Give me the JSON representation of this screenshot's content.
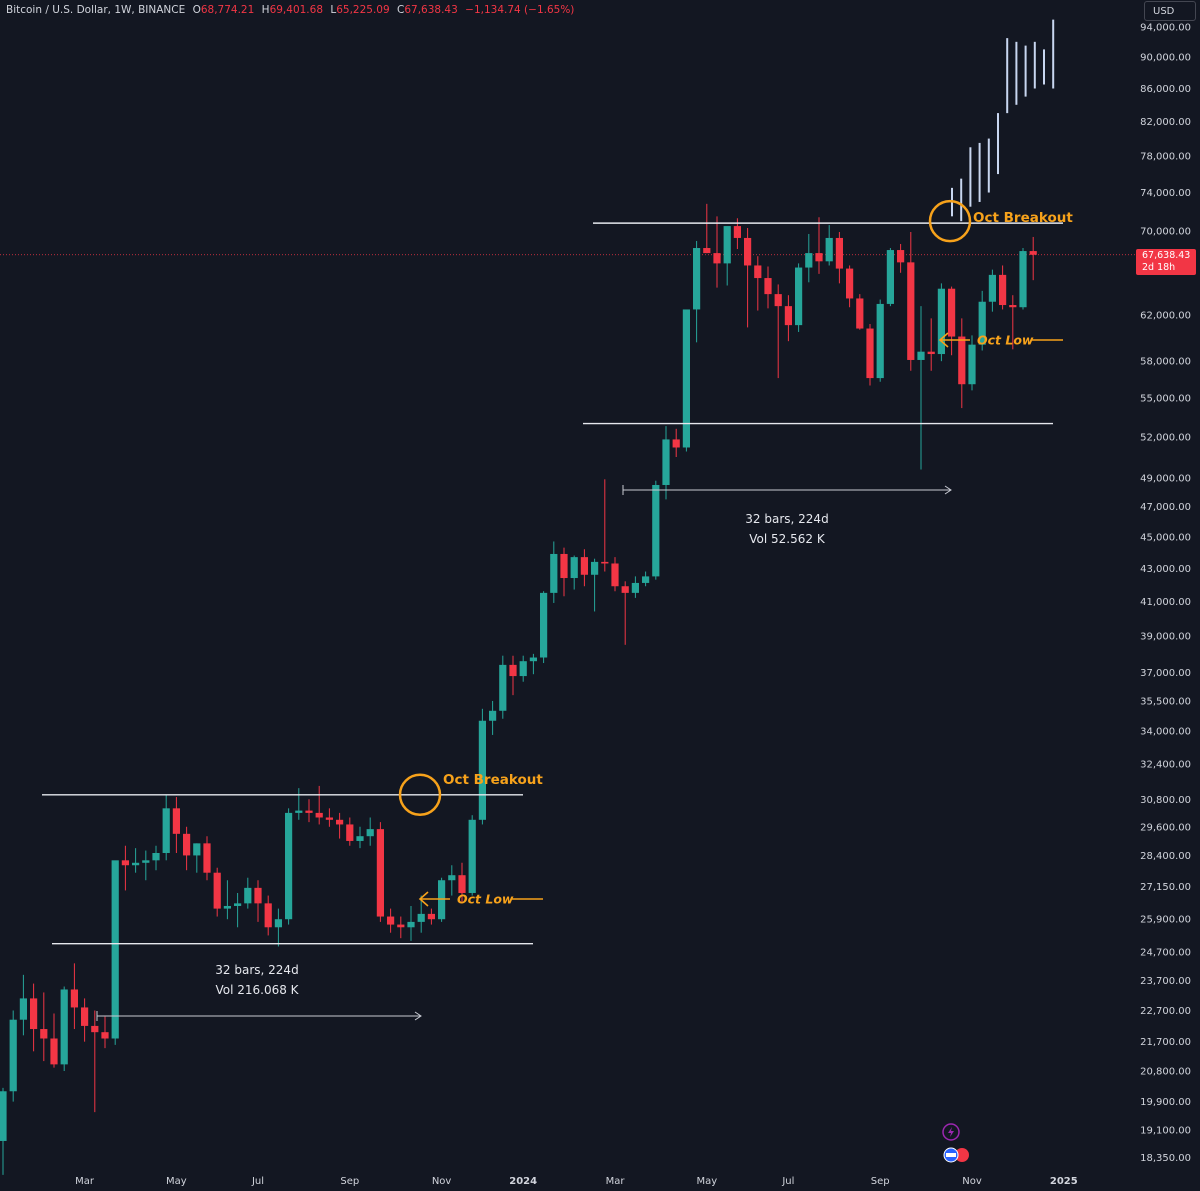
{
  "header": {
    "symbol": "Bitcoin / U.S. Dollar, 1W, BINANCE",
    "o_label": "O",
    "o_value": "68,774.21",
    "h_label": "H",
    "h_value": "69,401.68",
    "l_label": "L",
    "l_value": "65,225.09",
    "c_label": "C",
    "c_value": "67,638.43",
    "change": "−1,134.74 (−1.65%)"
  },
  "currency_button": "USD",
  "current_price": {
    "value": "67,638.43",
    "countdown": "2d 18h"
  },
  "colors": {
    "up": "#26a69a",
    "down": "#f23645",
    "annotation": "#f7a21b",
    "background": "#131722",
    "projection": "#c8d6f0"
  },
  "icons": [
    "flash-icon",
    "flag-events-icon"
  ],
  "chart_data": {
    "type": "candlestick",
    "interval": "1W",
    "y_scale": "log",
    "y_ticks": [
      "94,000.00",
      "90,000.00",
      "86,000.00",
      "82,000.00",
      "78,000.00",
      "74,000.00",
      "70,000.00",
      "62,000.00",
      "58,000.00",
      "55,000.00",
      "52,000.00",
      "49,000.00",
      "47,000.00",
      "45,000.00",
      "43,000.00",
      "41,000.00",
      "39,000.00",
      "37,000.00",
      "35,500.00",
      "34,000.00",
      "32,400.00",
      "30,800.00",
      "29,600.00",
      "28,400.00",
      "27,150.00",
      "25,900.00",
      "24,700.00",
      "23,700.00",
      "22,700.00",
      "21,700.00",
      "20,800.00",
      "19,900.00",
      "19,100.00",
      "18,350.00"
    ],
    "x_ticks": [
      "Mar",
      "May",
      "Jul",
      "Sep",
      "Nov",
      "2024",
      "Mar",
      "May",
      "Jul",
      "Sep",
      "Nov",
      "2025"
    ],
    "candles": [
      [
        18800,
        20300,
        17900,
        20200
      ],
      [
        20200,
        22700,
        19900,
        22400
      ],
      [
        22400,
        23900,
        21900,
        23100
      ],
      [
        23100,
        23600,
        21400,
        22100
      ],
      [
        22100,
        23300,
        21100,
        21800
      ],
      [
        21800,
        22600,
        20900,
        21000
      ],
      [
        21000,
        23500,
        20800,
        23400
      ],
      [
        23400,
        24300,
        22100,
        22800
      ],
      [
        22800,
        23100,
        21700,
        22200
      ],
      [
        22200,
        22700,
        19600,
        22000
      ],
      [
        22000,
        22500,
        21500,
        21800
      ],
      [
        21800,
        28000,
        21600,
        28200
      ],
      [
        28200,
        28800,
        27000,
        28000
      ],
      [
        28000,
        28700,
        27700,
        28100
      ],
      [
        28100,
        28600,
        27400,
        28200
      ],
      [
        28200,
        28800,
        27800,
        28500
      ],
      [
        28500,
        31000,
        28200,
        30400
      ],
      [
        30400,
        30900,
        28500,
        29300
      ],
      [
        29300,
        29600,
        27800,
        28400
      ],
      [
        28400,
        28900,
        27700,
        28900
      ],
      [
        28900,
        29200,
        27400,
        27700
      ],
      [
        27700,
        27900,
        26000,
        26300
      ],
      [
        26300,
        27400,
        25900,
        26400
      ],
      [
        26400,
        26900,
        25600,
        26500
      ],
      [
        26500,
        27500,
        26300,
        27100
      ],
      [
        27100,
        27400,
        25800,
        26500
      ],
      [
        26500,
        26800,
        25300,
        25600
      ],
      [
        25600,
        26300,
        24900,
        25900
      ],
      [
        25900,
        30400,
        25700,
        30200
      ],
      [
        30200,
        31300,
        29900,
        30300
      ],
      [
        30300,
        30800,
        29800,
        30200
      ],
      [
        30200,
        31400,
        29700,
        30000
      ],
      [
        30000,
        30400,
        29600,
        29900
      ],
      [
        29900,
        30200,
        29100,
        29700
      ],
      [
        29700,
        30000,
        28800,
        29000
      ],
      [
        29000,
        29600,
        28700,
        29200
      ],
      [
        29200,
        30000,
        28800,
        29500
      ],
      [
        29500,
        29800,
        25800,
        26000
      ],
      [
        26000,
        26300,
        25400,
        25700
      ],
      [
        25700,
        26000,
        25200,
        25600
      ],
      [
        25600,
        26400,
        25100,
        25800
      ],
      [
        25800,
        26800,
        25400,
        26100
      ],
      [
        26100,
        26300,
        25700,
        25900
      ],
      [
        25900,
        27500,
        25800,
        27400
      ],
      [
        27400,
        28000,
        26800,
        27600
      ],
      [
        27600,
        28100,
        26500,
        26900
      ],
      [
        26900,
        30100,
        26800,
        29900
      ],
      [
        29900,
        35100,
        29700,
        34500
      ],
      [
        34500,
        35500,
        33800,
        35000
      ],
      [
        35000,
        37900,
        34600,
        37400
      ],
      [
        37400,
        37900,
        35800,
        36800
      ],
      [
        36800,
        37900,
        36500,
        37600
      ],
      [
        37600,
        38000,
        36900,
        37800
      ],
      [
        37800,
        41600,
        37500,
        41500
      ],
      [
        41500,
        44700,
        40900,
        43900
      ],
      [
        43900,
        44300,
        41300,
        42400
      ],
      [
        42400,
        43800,
        41700,
        43700
      ],
      [
        43700,
        44200,
        41900,
        42600
      ],
      [
        42600,
        43600,
        40400,
        43400
      ],
      [
        43400,
        48900,
        42800,
        43300
      ],
      [
        43300,
        43700,
        41600,
        41900
      ],
      [
        41900,
        42200,
        38500,
        41500
      ],
      [
        41500,
        42500,
        41200,
        42100
      ],
      [
        42100,
        42800,
        41900,
        42500
      ],
      [
        42500,
        48800,
        42300,
        48500
      ],
      [
        48500,
        52800,
        47500,
        51800
      ],
      [
        51800,
        52600,
        50500,
        51200
      ],
      [
        51200,
        62000,
        50900,
        62500
      ],
      [
        62500,
        69000,
        59600,
        68300
      ],
      [
        68300,
        72800,
        67800,
        67800
      ],
      [
        67800,
        71500,
        64500,
        66800
      ],
      [
        66800,
        70000,
        64700,
        70500
      ],
      [
        70500,
        71300,
        68200,
        69300
      ],
      [
        69300,
        70300,
        60900,
        66600
      ],
      [
        66600,
        67500,
        62400,
        65400
      ],
      [
        65400,
        66500,
        62600,
        63900
      ],
      [
        63900,
        64800,
        56600,
        62800
      ],
      [
        62800,
        63800,
        59700,
        61100
      ],
      [
        61100,
        66800,
        60500,
        66400
      ],
      [
        66400,
        69700,
        65000,
        67800
      ],
      [
        67800,
        71400,
        65800,
        67000
      ],
      [
        67000,
        70600,
        66600,
        69300
      ],
      [
        69300,
        69900,
        64900,
        66300
      ],
      [
        66300,
        66600,
        62700,
        63500
      ],
      [
        63500,
        63900,
        60700,
        60800
      ],
      [
        60800,
        61200,
        56000,
        56600
      ],
      [
        56600,
        63400,
        56300,
        63000
      ],
      [
        63000,
        68300,
        62800,
        68100
      ],
      [
        68100,
        68700,
        65900,
        66900
      ],
      [
        66900,
        69900,
        57200,
        58100
      ],
      [
        58100,
        62800,
        49600,
        58800
      ],
      [
        58800,
        61700,
        57200,
        58600
      ],
      [
        58600,
        64900,
        58000,
        64400
      ],
      [
        64400,
        64600,
        58500,
        60100
      ],
      [
        60100,
        61700,
        54200,
        56100
      ],
      [
        56100,
        60200,
        55600,
        59400
      ],
      [
        59400,
        64200,
        58900,
        63200
      ],
      [
        63200,
        66200,
        62300,
        65700
      ],
      [
        65700,
        66600,
        62500,
        62900
      ],
      [
        62900,
        63800,
        59000,
        62700
      ],
      [
        62700,
        68300,
        62500,
        68000
      ],
      [
        68000,
        69400,
        65200,
        67638
      ]
    ],
    "projection_bars": [
      [
        71500,
        74500
      ],
      [
        71000,
        75500
      ],
      [
        72500,
        79000
      ],
      [
        73000,
        79500
      ],
      [
        74000,
        80000
      ],
      [
        76000,
        83000
      ],
      [
        83000,
        92500
      ],
      [
        84000,
        92000
      ],
      [
        85000,
        91500
      ],
      [
        86000,
        92000
      ],
      [
        86500,
        91000
      ],
      [
        86000,
        95000
      ]
    ],
    "annotations": [
      {
        "type": "hline",
        "price": 70800,
        "label": "Oct Breakout"
      },
      {
        "type": "hline",
        "price": 53000
      },
      {
        "type": "hline",
        "price": 31000,
        "label": "Oct Breakout"
      },
      {
        "type": "hline",
        "price": 25000
      },
      {
        "type": "label",
        "text": "Oct Low"
      },
      {
        "type": "label",
        "text": "Oct Low"
      },
      {
        "type": "range",
        "bars": "32 bars, 224d",
        "vol": "Vol 52.562 K"
      },
      {
        "type": "range",
        "bars": "32 bars, 224d",
        "vol": "Vol 216.068 K"
      }
    ]
  }
}
